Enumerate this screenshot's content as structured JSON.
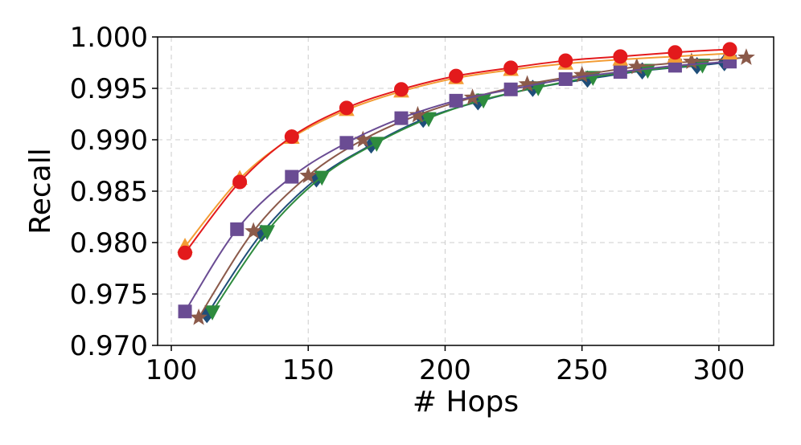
{
  "chart_data": {
    "type": "line",
    "title": "",
    "xlabel": "# Hops",
    "ylabel": "Recall",
    "xlim": [
      95,
      320
    ],
    "ylim": [
      0.97,
      1.0
    ],
    "xticks": [
      "100",
      "150",
      "200",
      "250",
      "300"
    ],
    "yticks": [
      "0.970",
      "0.975",
      "0.980",
      "0.985",
      "0.990",
      "0.995",
      "1.000"
    ],
    "grid": true,
    "series": [
      {
        "color": "#1f4e79",
        "marker": "diamond",
        "x": [
          113,
          133,
          153,
          173,
          192,
          212,
          232,
          252,
          272,
          292,
          302
        ],
        "y": [
          0.973,
          0.9809,
          0.9862,
          0.9895,
          0.992,
          0.9937,
          0.995,
          0.9959,
          0.9967,
          0.9972,
          0.9975
        ]
      },
      {
        "color": "#2e8b3e",
        "marker": "triangle-down",
        "x": [
          115,
          135,
          155,
          175,
          194,
          214,
          234,
          254,
          274,
          294
        ],
        "y": [
          0.9733,
          0.9811,
          0.9864,
          0.9897,
          0.9921,
          0.9939,
          0.9951,
          0.9961,
          0.9968,
          0.9973
        ]
      },
      {
        "color": "#8b5a4a",
        "marker": "star",
        "x": [
          110,
          130,
          150,
          170,
          190,
          210,
          230,
          250,
          270,
          290,
          310
        ],
        "y": [
          0.9727,
          0.9811,
          0.9865,
          0.99,
          0.9924,
          0.9941,
          0.9954,
          0.9963,
          0.9971,
          0.9976,
          0.998
        ]
      },
      {
        "color": "#6a4c93",
        "marker": "square",
        "x": [
          105,
          124,
          144,
          164,
          184,
          204,
          224,
          244,
          264,
          284,
          304
        ],
        "y": [
          0.9733,
          0.9813,
          0.9864,
          0.9897,
          0.9921,
          0.9938,
          0.9949,
          0.9959,
          0.9966,
          0.9972,
          0.9976
        ]
      },
      {
        "color": "#f39c34",
        "marker": "triangle-up",
        "x": [
          105,
          125,
          144,
          164,
          184,
          204,
          224,
          244,
          264,
          284,
          304
        ],
        "y": [
          0.9796,
          0.9862,
          0.9902,
          0.9929,
          0.9947,
          0.996,
          0.9968,
          0.9974,
          0.9978,
          0.9981,
          0.9984
        ]
      },
      {
        "color": "#e31a1c",
        "marker": "circle",
        "x": [
          105,
          125,
          144,
          164,
          184,
          204,
          224,
          244,
          264,
          284,
          304
        ],
        "y": [
          0.979,
          0.9859,
          0.9903,
          0.9931,
          0.9949,
          0.9962,
          0.997,
          0.9977,
          0.9981,
          0.9985,
          0.9988
        ]
      }
    ]
  }
}
